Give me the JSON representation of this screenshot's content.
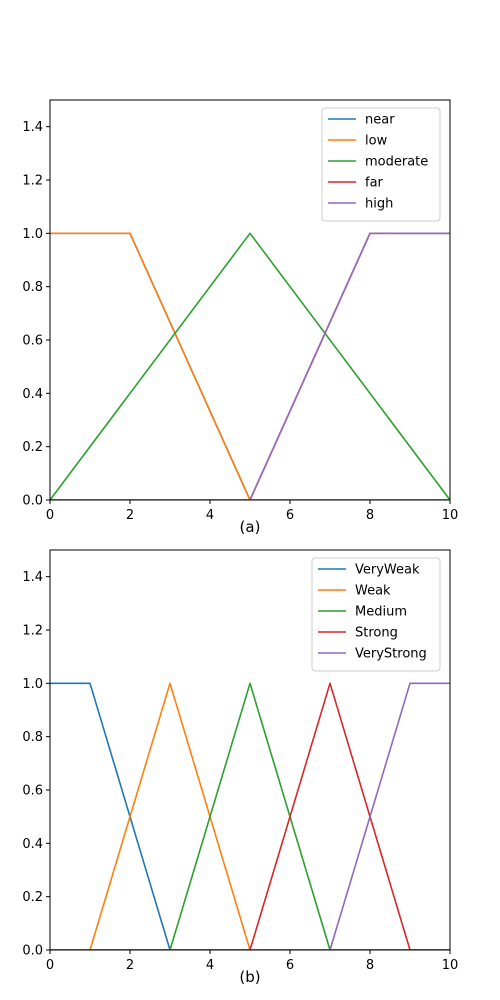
{
  "chart_data": [
    {
      "type": "line",
      "caption": "(a)",
      "xlim": [
        0,
        10
      ],
      "ylim": [
        0,
        1.5
      ],
      "xticks": [
        0,
        2,
        4,
        6,
        8,
        10
      ],
      "yticks": [
        0.0,
        0.2,
        0.4,
        0.6,
        0.8,
        1.0,
        1.2,
        1.4
      ],
      "legend_position": "top-right",
      "series": [
        {
          "name": "near",
          "color": "#1f77b4",
          "x": [
            0,
            2,
            5,
            10
          ],
          "y": [
            1,
            1,
            0,
            0
          ]
        },
        {
          "name": "low",
          "color": "#ff7f0e",
          "x": [
            0,
            2,
            5,
            10
          ],
          "y": [
            1,
            1,
            0,
            0
          ]
        },
        {
          "name": "moderate",
          "color": "#2ca02c",
          "x": [
            0,
            5,
            10
          ],
          "y": [
            0,
            1,
            0
          ]
        },
        {
          "name": "far",
          "color": "#d62728",
          "x": [
            0,
            5,
            8,
            10
          ],
          "y": [
            0,
            0,
            1,
            1
          ]
        },
        {
          "name": "high",
          "color": "#9467bd",
          "x": [
            0,
            5,
            8,
            10
          ],
          "y": [
            0,
            0,
            1,
            1
          ]
        }
      ]
    },
    {
      "type": "line",
      "caption": "(b)",
      "xlim": [
        0,
        10
      ],
      "ylim": [
        0,
        1.5
      ],
      "xticks": [
        0,
        2,
        4,
        6,
        8,
        10
      ],
      "yticks": [
        0.0,
        0.2,
        0.4,
        0.6,
        0.8,
        1.0,
        1.2,
        1.4
      ],
      "legend_position": "top-right",
      "series": [
        {
          "name": "VeryWeak",
          "color": "#1f77b4",
          "x": [
            0,
            1,
            3,
            10
          ],
          "y": [
            1,
            1,
            0,
            0
          ]
        },
        {
          "name": "Weak",
          "color": "#ff7f0e",
          "x": [
            0,
            1,
            3,
            5,
            10
          ],
          "y": [
            0,
            0,
            1,
            0,
            0
          ]
        },
        {
          "name": "Medium",
          "color": "#2ca02c",
          "x": [
            0,
            3,
            5,
            7,
            10
          ],
          "y": [
            0,
            0,
            1,
            0,
            0
          ]
        },
        {
          "name": "Strong",
          "color": "#d62728",
          "x": [
            0,
            5,
            7,
            9,
            10
          ],
          "y": [
            0,
            0,
            1,
            0,
            0
          ]
        },
        {
          "name": "VeryStrong",
          "color": "#9467bd",
          "x": [
            0,
            7,
            9,
            10
          ],
          "y": [
            0,
            0,
            1,
            1
          ]
        }
      ]
    }
  ]
}
